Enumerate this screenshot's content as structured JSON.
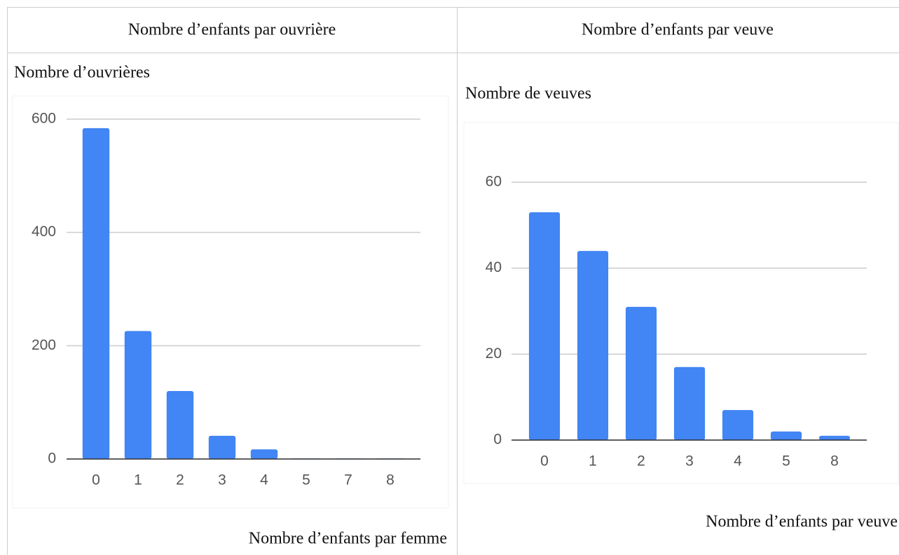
{
  "chart_data": [
    {
      "type": "bar",
      "title": "Nombre d’enfants par ouvrière",
      "y_label": "Nombre d’ouvrières",
      "x_label": "Nombre d’enfants par femme",
      "categories": [
        "0",
        "1",
        "2",
        "3",
        "4",
        "5",
        "7",
        "8"
      ],
      "values": [
        584,
        226,
        120,
        41,
        17,
        1,
        1,
        1
      ],
      "color": "#4285f4",
      "ylim": [
        0,
        600
      ],
      "yticks": [
        0,
        200,
        400,
        600
      ],
      "grid": true
    },
    {
      "type": "bar",
      "title": "Nombre d’enfants par veuve",
      "y_label": "Nombre de veuves",
      "x_label": "Nombre d’enfants par veuve",
      "categories": [
        "0",
        "1",
        "2",
        "3",
        "4",
        "5",
        "8"
      ],
      "values": [
        53,
        44,
        31,
        17,
        7,
        2,
        1
      ],
      "color": "#4285f4",
      "ylim": [
        0,
        70
      ],
      "yticks": [
        0,
        20,
        40,
        60
      ],
      "grid": true
    }
  ]
}
